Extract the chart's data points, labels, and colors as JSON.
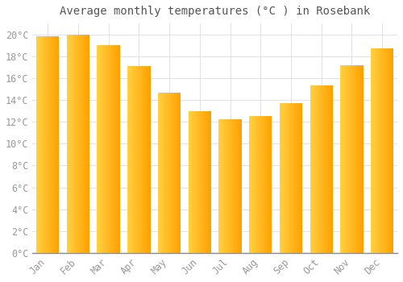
{
  "title": "Average monthly temperatures (°C ) in Rosebank",
  "months": [
    "Jan",
    "Feb",
    "Mar",
    "Apr",
    "May",
    "Jun",
    "Jul",
    "Aug",
    "Sep",
    "Oct",
    "Nov",
    "Dec"
  ],
  "values": [
    19.8,
    20.0,
    19.0,
    17.1,
    14.7,
    13.0,
    12.2,
    12.5,
    13.7,
    15.3,
    17.2,
    18.7
  ],
  "bar_color_left": "#FFD040",
  "bar_color_right": "#FFA000",
  "background_color": "#FFFFFF",
  "grid_color": "#DDDDDD",
  "text_color": "#999999",
  "title_color": "#555555",
  "ylim": [
    0,
    21
  ],
  "ytick_values": [
    0,
    2,
    4,
    6,
    8,
    10,
    12,
    14,
    16,
    18,
    20
  ],
  "title_fontsize": 10,
  "tick_fontsize": 8.5,
  "bar_width": 0.75
}
